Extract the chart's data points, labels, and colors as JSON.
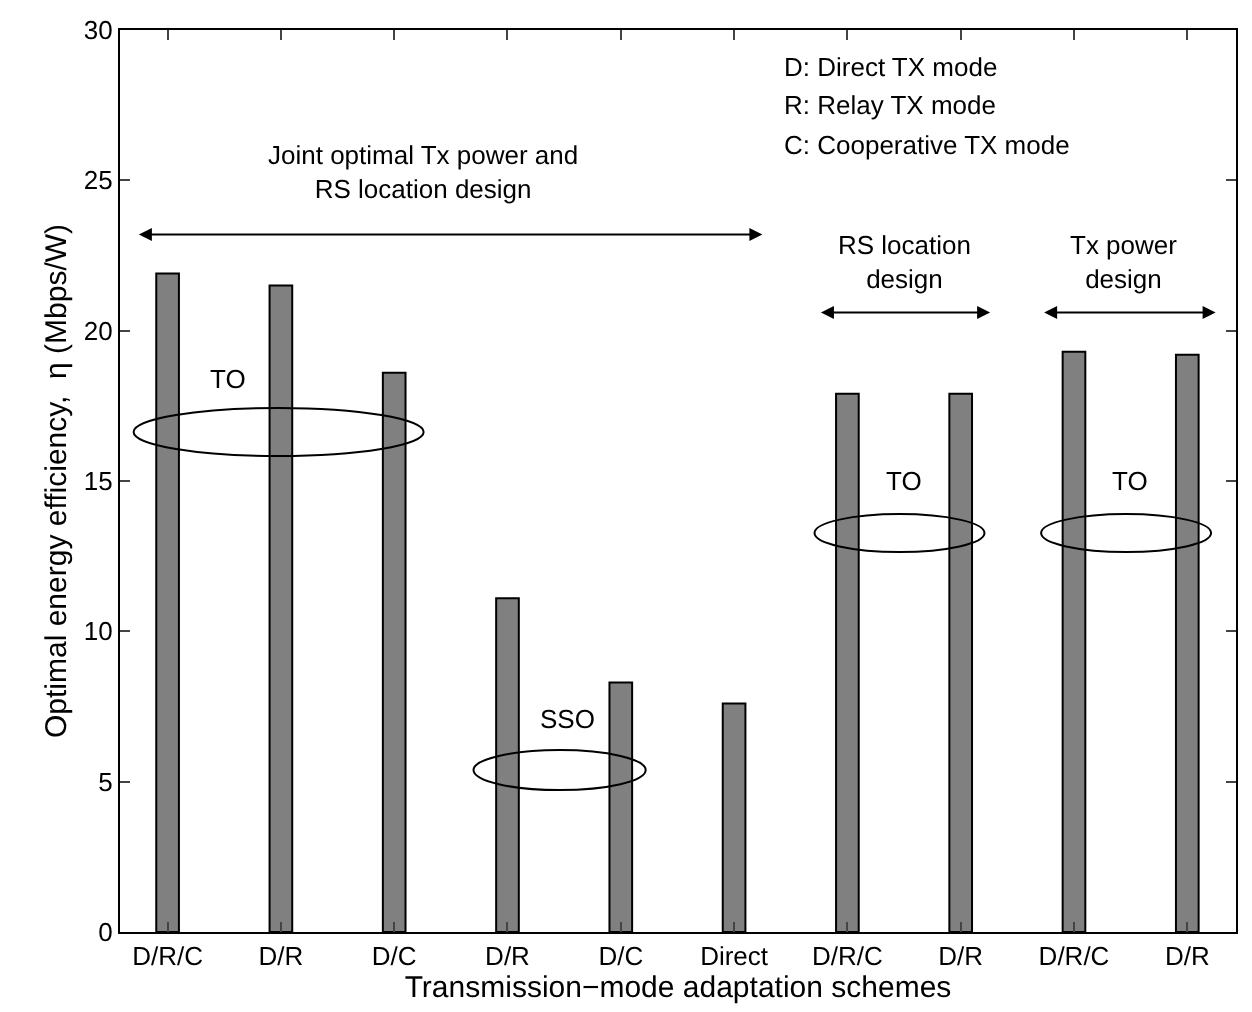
{
  "chart_data": {
    "type": "bar",
    "categories": [
      "D/R/C",
      "D/R",
      "D/C",
      "D/R",
      "D/C",
      "Direct",
      "D/R/C",
      "D/R",
      "D/R/C",
      "D/R"
    ],
    "values": [
      21.9,
      21.5,
      18.6,
      11.1,
      8.3,
      7.6,
      17.9,
      17.9,
      19.3,
      19.2
    ],
    "color": "#808080",
    "xlabel": "Transmission−mode adaptation schemes",
    "ylabel": "Optimal energy efficiency,  η (Mbps/W)",
    "ylim": [
      0,
      30
    ],
    "yticks": [
      0,
      5,
      10,
      15,
      20,
      25,
      30
    ],
    "legend": false,
    "annotations": [
      "D: Direct TX mode",
      "R: Relay TX mode",
      "C: Cooperative TX mode",
      "Joint optimal Tx power and\nRS location design",
      "RS location\ndesign",
      "Tx power\ndesign",
      "TO",
      "SSO",
      "TO",
      "TO"
    ]
  }
}
